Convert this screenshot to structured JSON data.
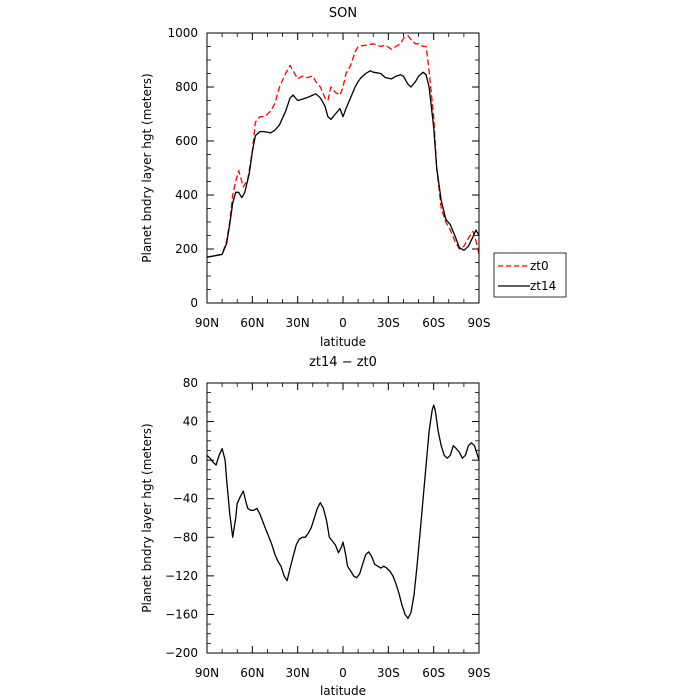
{
  "chart_data": [
    {
      "type": "line",
      "title": "SON",
      "xlabel": "latitude",
      "ylabel": "Planet bndry layer hgt (meters)",
      "xlim": [
        -90,
        90
      ],
      "ylim": [
        0,
        1000
      ],
      "xticks": [
        -90,
        -60,
        -30,
        0,
        30,
        60,
        90
      ],
      "xtick_labels": [
        "90N",
        "60N",
        "30N",
        "0",
        "30S",
        "60S",
        "90S"
      ],
      "yticks": [
        0,
        200,
        400,
        600,
        800,
        1000
      ],
      "ytick_labels": [
        "0",
        "200",
        "400",
        "600",
        "800",
        "1000"
      ],
      "grid": false,
      "legend": "right",
      "series": [
        {
          "name": "zt0",
          "color": "#ff0000",
          "dash": "dashed",
          "x": [
            -90,
            -85,
            -80,
            -77,
            -75,
            -73,
            -71,
            -69,
            -66,
            -63,
            -60,
            -58,
            -55,
            -52,
            -48,
            -45,
            -42,
            -38,
            -35,
            -33,
            -30,
            -27,
            -24,
            -20,
            -18,
            -15,
            -12,
            -10,
            -8,
            -5,
            -2,
            0,
            2,
            5,
            8,
            10,
            15,
            20,
            25,
            28,
            32,
            35,
            38,
            40,
            43,
            45,
            48,
            50,
            53,
            55,
            57,
            60,
            62,
            65,
            68,
            71,
            74,
            77,
            80,
            83,
            86,
            88,
            90
          ],
          "y": [
            170,
            175,
            180,
            230,
            300,
            400,
            450,
            490,
            430,
            460,
            560,
            670,
            690,
            690,
            710,
            740,
            800,
            850,
            880,
            860,
            830,
            840,
            835,
            840,
            820,
            800,
            760,
            750,
            800,
            780,
            770,
            800,
            850,
            880,
            930,
            950,
            955,
            960,
            950,
            955,
            940,
            950,
            960,
            980,
            990,
            975,
            960,
            960,
            950,
            950,
            860,
            690,
            500,
            350,
            300,
            270,
            230,
            200,
            210,
            240,
            265,
            230,
            180
          ]
        },
        {
          "name": "zt14",
          "color": "#000000",
          "dash": "solid",
          "x": [
            -90,
            -85,
            -80,
            -77,
            -75,
            -73,
            -71,
            -69,
            -67,
            -65,
            -62,
            -60,
            -58,
            -55,
            -52,
            -48,
            -45,
            -42,
            -38,
            -35,
            -33,
            -30,
            -27,
            -24,
            -20,
            -18,
            -15,
            -12,
            -10,
            -8,
            -5,
            -2,
            0,
            2,
            5,
            8,
            10,
            12,
            15,
            18,
            20,
            25,
            28,
            32,
            35,
            38,
            40,
            43,
            45,
            48,
            50,
            53,
            55,
            57,
            60,
            62,
            65,
            68,
            71,
            74,
            77,
            80,
            83,
            86,
            88,
            90
          ],
          "y": [
            170,
            175,
            180,
            220,
            290,
            370,
            410,
            410,
            390,
            410,
            480,
            560,
            620,
            635,
            635,
            630,
            640,
            660,
            710,
            760,
            770,
            750,
            755,
            760,
            770,
            775,
            760,
            730,
            690,
            680,
            700,
            720,
            690,
            720,
            760,
            800,
            820,
            835,
            850,
            860,
            855,
            850,
            835,
            830,
            840,
            845,
            840,
            810,
            800,
            820,
            840,
            855,
            845,
            800,
            650,
            500,
            380,
            310,
            290,
            250,
            205,
            195,
            210,
            245,
            270,
            250
          ]
        }
      ]
    },
    {
      "type": "line",
      "title": "zt14 − zt0",
      "xlabel": "latitude",
      "ylabel": "Planet bndry layer hgt (meters)",
      "xlim": [
        -90,
        90
      ],
      "ylim": [
        -200,
        80
      ],
      "xticks": [
        -90,
        -60,
        -30,
        0,
        30,
        60,
        90
      ],
      "xtick_labels": [
        "90N",
        "60N",
        "30N",
        "0",
        "30S",
        "60S",
        "90S"
      ],
      "yticks": [
        -200,
        -160,
        -120,
        -80,
        -40,
        0,
        40,
        80
      ],
      "ytick_labels": [
        "−200",
        "−160",
        "−120",
        "−80",
        "−40",
        "0",
        "40",
        "80"
      ],
      "grid": false,
      "series": [
        {
          "color": "#000000",
          "dash": "solid",
          "x": [
            -90,
            -88,
            -86,
            -84,
            -82,
            -80,
            -78,
            -77,
            -75,
            -73,
            -71,
            -70,
            -68,
            -66,
            -64,
            -63,
            -61,
            -59,
            -57,
            -55,
            -53,
            -51,
            -49,
            -47,
            -45,
            -43,
            -41,
            -39,
            -37,
            -35,
            -33,
            -31,
            -29,
            -27,
            -25,
            -23,
            -21,
            -19,
            -17,
            -15,
            -13,
            -11,
            -9,
            -7,
            -5,
            -3,
            -1,
            0,
            1,
            2,
            3,
            5,
            7,
            9,
            11,
            13,
            15,
            17,
            19,
            21,
            23,
            25,
            27,
            29,
            31,
            33,
            35,
            37,
            39,
            41,
            43,
            45,
            47,
            49,
            51,
            53,
            55,
            57,
            59,
            60,
            61,
            63,
            65,
            67,
            69,
            71,
            73,
            75,
            77,
            79,
            81,
            83,
            85,
            87,
            89,
            90
          ],
          "y": [
            5,
            2,
            -2,
            -5,
            5,
            12,
            0,
            -20,
            -55,
            -80,
            -60,
            -45,
            -38,
            -32,
            -45,
            -50,
            -52,
            -52,
            -50,
            -56,
            -64,
            -72,
            -80,
            -88,
            -98,
            -105,
            -110,
            -120,
            -125,
            -112,
            -100,
            -88,
            -82,
            -80,
            -80,
            -76,
            -70,
            -60,
            -50,
            -44,
            -50,
            -62,
            -80,
            -84,
            -88,
            -96,
            -90,
            -85,
            -92,
            -100,
            -110,
            -115,
            -120,
            -122,
            -118,
            -108,
            -98,
            -95,
            -100,
            -108,
            -110,
            -112,
            -110,
            -112,
            -115,
            -120,
            -128,
            -138,
            -150,
            -160,
            -164,
            -158,
            -140,
            -110,
            -75,
            -40,
            -5,
            30,
            52,
            57,
            52,
            30,
            15,
            5,
            2,
            5,
            15,
            12,
            8,
            2,
            5,
            15,
            18,
            15,
            5,
            0
          ]
        }
      ]
    }
  ]
}
